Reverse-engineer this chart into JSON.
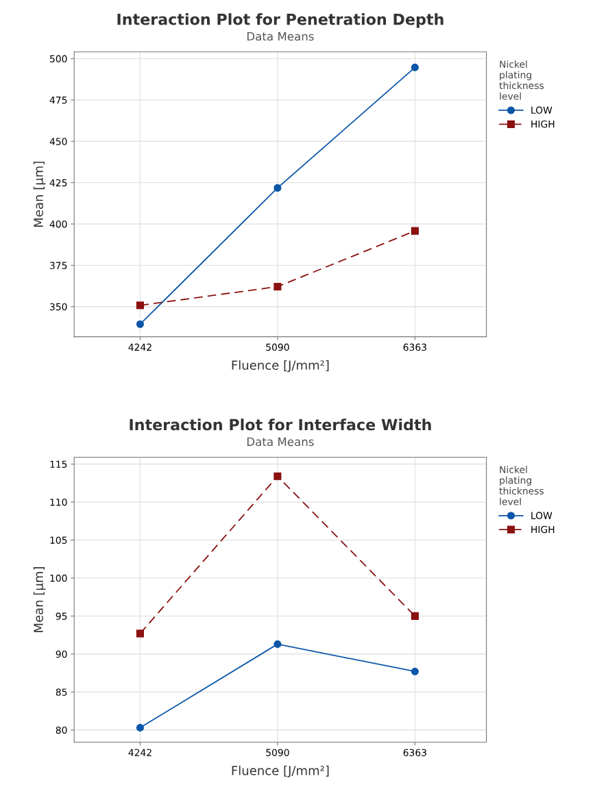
{
  "chart_data": [
    {
      "type": "line",
      "title": "Interaction Plot for Penetration Depth",
      "subtitle": "Data Means",
      "xlabel": "Fluence [J/mm²]",
      "ylabel": "Mean [µm]",
      "legend_title": "Nickel\nplating\nthickness\nlevel",
      "categories": [
        "4242",
        "5090",
        "6363"
      ],
      "series": [
        {
          "name": "LOW",
          "color": "#0b56a8",
          "values": [
            339.4,
            421.8,
            494.7
          ],
          "marker": "circle",
          "line_style": "solid"
        },
        {
          "name": "HIGH",
          "color": "#8b1010",
          "values": [
            350.8,
            362.1,
            395.8
          ],
          "marker": "square",
          "line_style": "dashed"
        }
      ],
      "ylim": [
        331.8,
        504.1
      ],
      "yticks": [
        350,
        375,
        400,
        425,
        450,
        475,
        500
      ],
      "grid": true,
      "legend": "top right"
    },
    {
      "type": "line",
      "title": "Interaction Plot for Interface Width",
      "subtitle": "Data Means",
      "xlabel": "Fluence [J/mm²]",
      "ylabel": "Mean [µm]",
      "legend_title": "Nickel\nplating\nthickness\nlevel",
      "categories": [
        "4242",
        "5090",
        "6363"
      ],
      "series": [
        {
          "name": "LOW",
          "color": "#0b56a8",
          "values": [
            80.3,
            91.3,
            87.7
          ],
          "marker": "circle",
          "line_style": "solid"
        },
        {
          "name": "HIGH",
          "color": "#8b1010",
          "values": [
            92.7,
            113.4,
            95.0
          ],
          "marker": "square",
          "line_style": "dashed"
        }
      ],
      "ylim": [
        78.4,
        115.9
      ],
      "yticks": [
        80,
        85,
        90,
        95,
        100,
        105,
        110,
        115
      ],
      "grid": true,
      "legend": "top right"
    }
  ]
}
